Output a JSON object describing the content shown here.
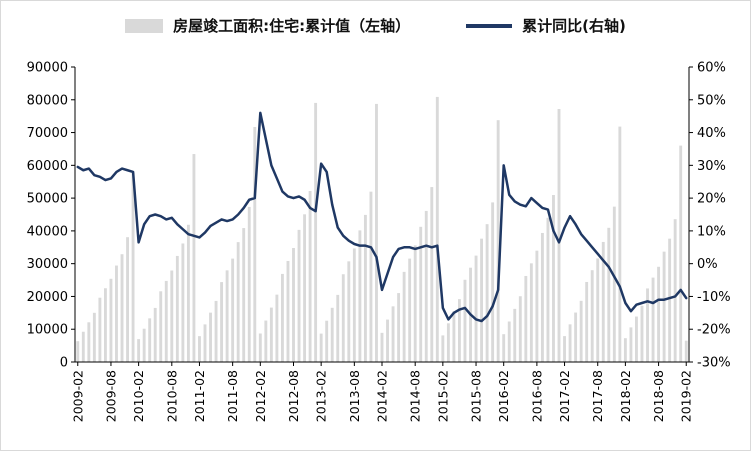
{
  "legend": {
    "bars_label": "房屋竣工面积:住宅:累计值（左轴）",
    "line_label": "累计同比(右轴)"
  },
  "colors": {
    "bar": "#d9d9d9",
    "line": "#1f3864",
    "axis": "#000000"
  },
  "chart_data": {
    "type": "combo",
    "categories": [
      "2009-02",
      "2009-03",
      "2009-04",
      "2009-05",
      "2009-06",
      "2009-07",
      "2009-08",
      "2009-09",
      "2009-10",
      "2009-11",
      "2009-12",
      "2010-02",
      "2010-03",
      "2010-04",
      "2010-05",
      "2010-06",
      "2010-07",
      "2010-08",
      "2010-09",
      "2010-10",
      "2010-11",
      "2010-12",
      "2011-02",
      "2011-03",
      "2011-04",
      "2011-05",
      "2011-06",
      "2011-07",
      "2011-08",
      "2011-09",
      "2011-10",
      "2011-11",
      "2011-12",
      "2012-02",
      "2012-03",
      "2012-04",
      "2012-05",
      "2012-06",
      "2012-07",
      "2012-08",
      "2012-09",
      "2012-10",
      "2012-11",
      "2012-12",
      "2013-02",
      "2013-03",
      "2013-04",
      "2013-05",
      "2013-06",
      "2013-07",
      "2013-08",
      "2013-09",
      "2013-10",
      "2013-11",
      "2013-12",
      "2014-02",
      "2014-03",
      "2014-04",
      "2014-05",
      "2014-06",
      "2014-07",
      "2014-08",
      "2014-09",
      "2014-10",
      "2014-11",
      "2014-12",
      "2015-02",
      "2015-03",
      "2015-04",
      "2015-05",
      "2015-06",
      "2015-07",
      "2015-08",
      "2015-09",
      "2015-10",
      "2015-11",
      "2015-12",
      "2016-02",
      "2016-03",
      "2016-04",
      "2016-05",
      "2016-06",
      "2016-07",
      "2016-08",
      "2016-09",
      "2016-10",
      "2016-11",
      "2016-12",
      "2017-02",
      "2017-03",
      "2017-04",
      "2017-05",
      "2017-06",
      "2017-07",
      "2017-08",
      "2017-09",
      "2017-10",
      "2017-11",
      "2017-12",
      "2018-02",
      "2018-03",
      "2018-04",
      "2018-05",
      "2018-06",
      "2018-07",
      "2018-08",
      "2018-09",
      "2018-10",
      "2018-11",
      "2018-12",
      "2019-02"
    ],
    "series": [
      {
        "name": "房屋竣工面积:住宅:累计值（左轴）",
        "type": "bar",
        "axis": "left",
        "values": [
          6346,
          9231,
          12116,
          15000,
          19616,
          22501,
          25385,
          29424,
          32886,
          38078,
          57694,
          6979,
          10151,
          13323,
          16495,
          21571,
          24743,
          27915,
          32356,
          36163,
          41872,
          63443,
          7886,
          11471,
          15055,
          18640,
          24375,
          27960,
          31544,
          36563,
          40864,
          47317,
          71692,
          8695,
          12647,
          16599,
          20551,
          26875,
          30827,
          34779,
          40312,
          45055,
          52168,
          79043,
          8662,
          12599,
          16536,
          20473,
          26772,
          30709,
          34646,
          40158,
          44882,
          51969,
          78741,
          8895,
          12939,
          16982,
          21026,
          27495,
          31539,
          35582,
          41243,
          46095,
          53373,
          80868,
          8115,
          11804,
          15493,
          19182,
          25084,
          28773,
          32462,
          37626,
          42053,
          48693,
          73777,
          8490,
          12350,
          16209,
          20068,
          26243,
          30102,
          33961,
          39364,
          43995,
          50942,
          77185,
          7900,
          11490,
          15081,
          18672,
          24417,
          28008,
          31599,
          36626,
          40935,
          47398,
          71815,
          7262,
          10563,
          13863,
          17164,
          22445,
          25746,
          29047,
          33668,
          37629,
          43571,
          66016,
          6500
        ]
      },
      {
        "name": "累计同比(右轴)",
        "type": "line",
        "axis": "right",
        "unit": "%",
        "values": [
          29.5,
          28.5,
          29.0,
          27.0,
          26.5,
          25.5,
          26.0,
          28.0,
          29.0,
          28.5,
          28.0,
          6.5,
          12.0,
          14.5,
          15.0,
          14.5,
          13.5,
          14.0,
          12.0,
          10.5,
          9.0,
          8.5,
          8.0,
          9.5,
          11.5,
          12.5,
          13.5,
          13.0,
          13.5,
          15.0,
          17.0,
          19.5,
          20.0,
          46.0,
          38.0,
          30.0,
          26.0,
          22.0,
          20.5,
          20.0,
          20.5,
          19.5,
          17.0,
          16.0,
          30.5,
          28.0,
          18.0,
          11.0,
          8.5,
          7.0,
          6.0,
          5.5,
          5.5,
          5.0,
          2.0,
          -8.0,
          -3.0,
          2.0,
          4.5,
          5.0,
          5.0,
          4.5,
          5.0,
          5.5,
          5.0,
          5.5,
          -13.5,
          -17.0,
          -15.0,
          -14.0,
          -13.5,
          -15.5,
          -17.0,
          -17.5,
          -16.0,
          -13.0,
          -8.0,
          30.0,
          21.0,
          19.0,
          18.0,
          17.5,
          20.0,
          18.5,
          17.0,
          16.5,
          10.0,
          6.5,
          11.0,
          14.5,
          12.0,
          9.0,
          7.0,
          5.0,
          3.0,
          1.0,
          -1.0,
          -4.0,
          -7.0,
          -12.0,
          -14.5,
          -12.5,
          -12.0,
          -11.5,
          -12.0,
          -11.0,
          -11.0,
          -10.5,
          -10.0,
          -8.0,
          -10.5
        ]
      }
    ],
    "left_axis": {
      "min": 0,
      "max": 90000,
      "tick_labels": [
        "0",
        "10000",
        "20000",
        "30000",
        "40000",
        "50000",
        "60000",
        "70000",
        "80000",
        "90000"
      ]
    },
    "right_axis": {
      "min": -30,
      "max": 60,
      "tick_labels": [
        "-30%",
        "-20%",
        "-10%",
        "0%",
        "10%",
        "20%",
        "30%",
        "40%",
        "50%",
        "60%"
      ]
    },
    "x_tick_labels": [
      "2009-02",
      "2009-08",
      "2010-02",
      "2010-08",
      "2011-02",
      "2011-08",
      "2012-02",
      "2012-08",
      "2013-02",
      "2013-08",
      "2014-02",
      "2014-08",
      "2015-02",
      "2015-08",
      "2016-02",
      "2016-08",
      "2017-02",
      "2017-08",
      "2018-02",
      "2018-08",
      "2019-02"
    ],
    "grid": "off",
    "legend_position": "top"
  }
}
